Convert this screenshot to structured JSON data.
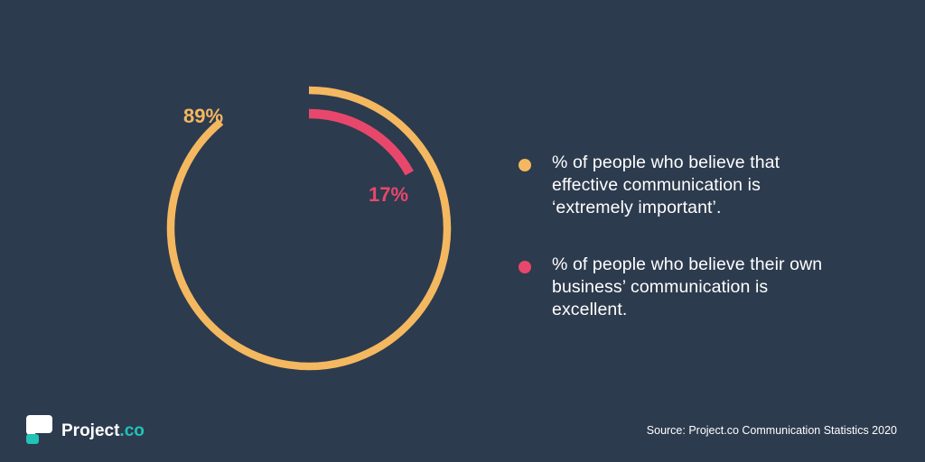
{
  "chart_data": {
    "type": "pie",
    "title": "",
    "series": [
      {
        "label": "89%",
        "value": 89,
        "color": "#f4b860"
      },
      {
        "label": "17%",
        "value": 17,
        "color": "#e8476c"
      }
    ]
  },
  "legend": {
    "items": [
      {
        "color": "#f4b860",
        "text": "% of people who believe that effective communication is ‘extremely important’."
      },
      {
        "color": "#e8476c",
        "text": "% of people who believe their own business’ communication is excellent."
      }
    ]
  },
  "footer": {
    "brand_name": "Project",
    "brand_suffix": ".co",
    "source": "Source: Project.co Communication Statistics 2020"
  },
  "colors": {
    "background": "#2d3b4e",
    "accent_teal": "#22c2b7"
  }
}
